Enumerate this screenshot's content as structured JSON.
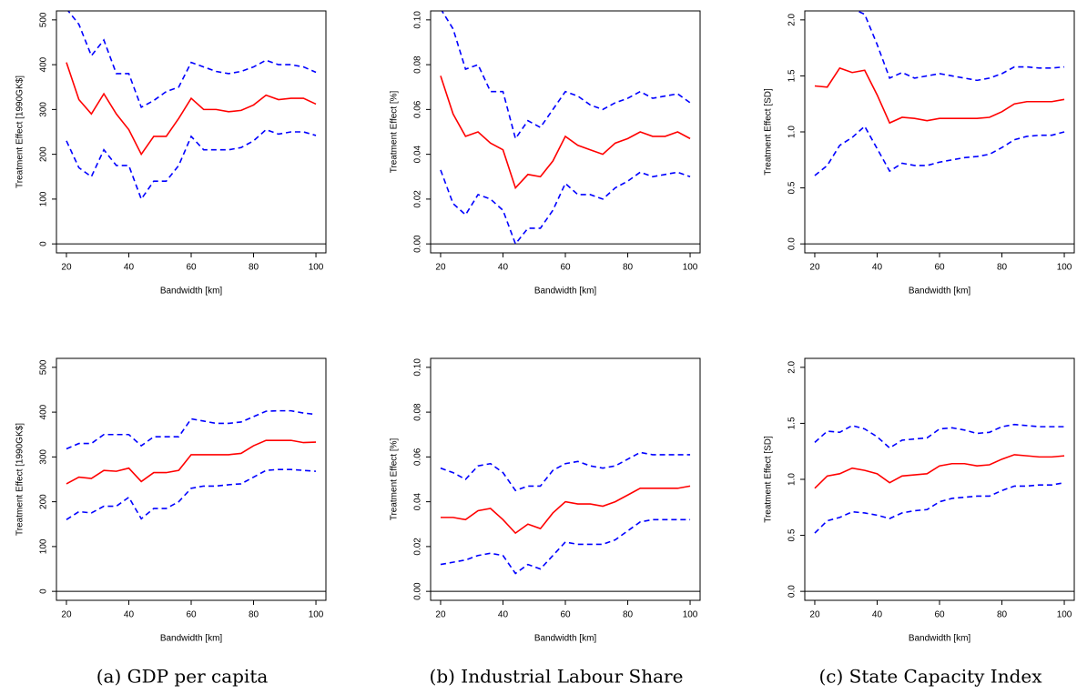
{
  "chart_data": [
    {
      "type": "line",
      "ylabel": "Treatment Effect [1990GK$]",
      "xlabel": "Bandwidth [km]",
      "x": [
        20,
        24,
        28,
        32,
        36,
        40,
        44,
        48,
        52,
        56,
        60,
        64,
        68,
        72,
        76,
        80,
        84,
        88,
        92,
        96,
        100
      ],
      "series": [
        {
          "color": "#ff0000",
          "linestyle": "solid",
          "values": [
            405,
            322,
            290,
            335,
            290,
            255,
            200,
            240,
            240,
            280,
            325,
            300,
            300,
            295,
            298,
            310,
            332,
            322,
            325,
            325,
            312
          ]
        },
        {
          "color": "#0000ff",
          "linestyle": "dashed",
          "values": [
            525,
            490,
            420,
            455,
            380,
            380,
            305,
            320,
            340,
            350,
            405,
            395,
            385,
            380,
            385,
            395,
            410,
            400,
            400,
            395,
            383
          ]
        },
        {
          "color": "#0000ff",
          "linestyle": "dashed",
          "values": [
            230,
            170,
            150,
            210,
            175,
            175,
            100,
            140,
            140,
            175,
            240,
            210,
            210,
            210,
            215,
            230,
            255,
            245,
            250,
            250,
            242
          ]
        }
      ],
      "hline": 0,
      "xlim": [
        16.8,
        103.2
      ],
      "xticks": [
        20,
        40,
        60,
        80,
        100
      ],
      "ylim": [
        -20,
        520
      ],
      "yticks": [
        0,
        100,
        200,
        300,
        400,
        500
      ]
    },
    {
      "type": "line",
      "ylabel": "Treatment Effect [%]",
      "xlabel": "Bandwidth [km]",
      "x": [
        20,
        24,
        28,
        32,
        36,
        40,
        44,
        48,
        52,
        56,
        60,
        64,
        68,
        72,
        76,
        80,
        84,
        88,
        92,
        96,
        100
      ],
      "series": [
        {
          "color": "#ff0000",
          "linestyle": "solid",
          "values": [
            0.075,
            0.058,
            0.048,
            0.05,
            0.045,
            0.042,
            0.025,
            0.031,
            0.03,
            0.037,
            0.048,
            0.044,
            0.042,
            0.04,
            0.045,
            0.047,
            0.05,
            0.048,
            0.048,
            0.05,
            0.047
          ]
        },
        {
          "color": "#0000ff",
          "linestyle": "dashed",
          "values": [
            0.105,
            0.096,
            0.078,
            0.08,
            0.068,
            0.068,
            0.047,
            0.055,
            0.052,
            0.06,
            0.068,
            0.066,
            0.062,
            0.06,
            0.063,
            0.065,
            0.068,
            0.065,
            0.066,
            0.067,
            0.063
          ]
        },
        {
          "color": "#0000ff",
          "linestyle": "dashed",
          "values": [
            0.033,
            0.018,
            0.013,
            0.022,
            0.02,
            0.015,
            0.0,
            0.007,
            0.007,
            0.015,
            0.027,
            0.022,
            0.022,
            0.02,
            0.025,
            0.028,
            0.032,
            0.03,
            0.031,
            0.032,
            0.03
          ]
        }
      ],
      "hline": 0,
      "xlim": [
        16.8,
        103.2
      ],
      "xticks": [
        20,
        40,
        60,
        80,
        100
      ],
      "ylim": [
        -0.004,
        0.104
      ],
      "yticks": [
        {
          "value": 0,
          "label": "0.00"
        },
        {
          "value": 0.02,
          "label": "0.02"
        },
        {
          "value": 0.04,
          "label": "0.04"
        },
        {
          "value": 0.06,
          "label": "0.06"
        },
        {
          "value": 0.08,
          "label": "0.08"
        },
        {
          "value": 0.1,
          "label": "0.10"
        }
      ]
    },
    {
      "type": "line",
      "ylabel": "Treatment Effect [SD]",
      "xlabel": "Bandwidth [km]",
      "x": [
        20,
        24,
        28,
        32,
        36,
        40,
        44,
        48,
        52,
        56,
        60,
        64,
        68,
        72,
        76,
        80,
        84,
        88,
        92,
        96,
        100
      ],
      "series": [
        {
          "color": "#ff0000",
          "linestyle": "solid",
          "values": [
            1.41,
            1.4,
            1.57,
            1.53,
            1.55,
            1.33,
            1.08,
            1.13,
            1.12,
            1.1,
            1.12,
            1.12,
            1.12,
            1.12,
            1.13,
            1.18,
            1.25,
            1.27,
            1.27,
            1.27,
            1.29
          ]
        },
        {
          "color": "#0000ff",
          "linestyle": "dashed",
          "values": [
            2.12,
            2.1,
            2.12,
            2.1,
            2.05,
            1.78,
            1.48,
            1.53,
            1.48,
            1.5,
            1.52,
            1.5,
            1.48,
            1.46,
            1.48,
            1.52,
            1.58,
            1.58,
            1.57,
            1.57,
            1.58
          ]
        },
        {
          "color": "#0000ff",
          "linestyle": "dashed",
          "values": [
            0.61,
            0.7,
            0.88,
            0.95,
            1.05,
            0.85,
            0.65,
            0.72,
            0.7,
            0.7,
            0.73,
            0.75,
            0.77,
            0.78,
            0.8,
            0.86,
            0.93,
            0.96,
            0.97,
            0.97,
            1.0
          ]
        }
      ],
      "hline": 0,
      "xlim": [
        16.8,
        103.2
      ],
      "xticks": [
        20,
        40,
        60,
        80,
        100
      ],
      "ylim": [
        -0.08,
        2.08
      ],
      "yticks": [
        {
          "value": 0,
          "label": "0.0"
        },
        {
          "value": 0.5,
          "label": "0.5"
        },
        {
          "value": 1,
          "label": "1.0"
        },
        {
          "value": 1.5,
          "label": "1.5"
        },
        {
          "value": 2,
          "label": "2.0"
        }
      ]
    },
    {
      "type": "line",
      "ylabel": "Treatment Effect [1990GK$]",
      "xlabel": "Bandwidth [km]",
      "x": [
        20,
        24,
        28,
        32,
        36,
        40,
        44,
        48,
        52,
        56,
        60,
        64,
        68,
        72,
        76,
        80,
        84,
        88,
        92,
        96,
        100
      ],
      "series": [
        {
          "color": "#ff0000",
          "linestyle": "solid",
          "values": [
            240,
            255,
            252,
            270,
            268,
            275,
            245,
            265,
            265,
            270,
            305,
            305,
            305,
            305,
            308,
            325,
            337,
            337,
            337,
            332,
            333
          ]
        },
        {
          "color": "#0000ff",
          "linestyle": "dashed",
          "values": [
            318,
            330,
            330,
            350,
            350,
            350,
            325,
            345,
            345,
            345,
            385,
            380,
            375,
            375,
            378,
            390,
            402,
            403,
            403,
            398,
            395
          ]
        },
        {
          "color": "#0000ff",
          "linestyle": "dashed",
          "values": [
            160,
            178,
            175,
            190,
            190,
            210,
            162,
            185,
            185,
            200,
            230,
            235,
            235,
            238,
            240,
            255,
            270,
            272,
            272,
            270,
            268
          ]
        }
      ],
      "hline": 0,
      "xlim": [
        16.8,
        103.2
      ],
      "xticks": [
        20,
        40,
        60,
        80,
        100
      ],
      "ylim": [
        -20,
        520
      ],
      "yticks": [
        0,
        100,
        200,
        300,
        400,
        500
      ]
    },
    {
      "type": "line",
      "ylabel": "Treatment Effect [%]",
      "xlabel": "Bandwidth [km]",
      "x": [
        20,
        24,
        28,
        32,
        36,
        40,
        44,
        48,
        52,
        56,
        60,
        64,
        68,
        72,
        76,
        80,
        84,
        88,
        92,
        96,
        100
      ],
      "series": [
        {
          "color": "#ff0000",
          "linestyle": "solid",
          "values": [
            0.033,
            0.033,
            0.032,
            0.036,
            0.037,
            0.032,
            0.026,
            0.03,
            0.028,
            0.035,
            0.04,
            0.039,
            0.039,
            0.038,
            0.04,
            0.043,
            0.046,
            0.046,
            0.046,
            0.046,
            0.047
          ]
        },
        {
          "color": "#0000ff",
          "linestyle": "dashed",
          "values": [
            0.055,
            0.053,
            0.05,
            0.056,
            0.057,
            0.053,
            0.045,
            0.047,
            0.047,
            0.054,
            0.057,
            0.058,
            0.056,
            0.055,
            0.056,
            0.059,
            0.062,
            0.061,
            0.061,
            0.061,
            0.061
          ]
        },
        {
          "color": "#0000ff",
          "linestyle": "dashed",
          "values": [
            0.012,
            0.013,
            0.014,
            0.016,
            0.017,
            0.016,
            0.008,
            0.012,
            0.01,
            0.016,
            0.022,
            0.021,
            0.021,
            0.021,
            0.023,
            0.027,
            0.031,
            0.032,
            0.032,
            0.032,
            0.032
          ]
        }
      ],
      "hline": 0,
      "xlim": [
        16.8,
        103.2
      ],
      "xticks": [
        20,
        40,
        60,
        80,
        100
      ],
      "ylim": [
        -0.004,
        0.104
      ],
      "yticks": [
        {
          "value": 0,
          "label": "0.00"
        },
        {
          "value": 0.02,
          "label": "0.02"
        },
        {
          "value": 0.04,
          "label": "0.04"
        },
        {
          "value": 0.06,
          "label": "0.06"
        },
        {
          "value": 0.08,
          "label": "0.08"
        },
        {
          "value": 0.1,
          "label": "0.10"
        }
      ]
    },
    {
      "type": "line",
      "ylabel": "Treatment Effect [SD]",
      "xlabel": "Bandwidth [km]",
      "x": [
        20,
        24,
        28,
        32,
        36,
        40,
        44,
        48,
        52,
        56,
        60,
        64,
        68,
        72,
        76,
        80,
        84,
        88,
        92,
        96,
        100
      ],
      "series": [
        {
          "color": "#ff0000",
          "linestyle": "solid",
          "values": [
            0.92,
            1.03,
            1.05,
            1.1,
            1.08,
            1.05,
            0.97,
            1.03,
            1.04,
            1.05,
            1.12,
            1.14,
            1.14,
            1.12,
            1.13,
            1.18,
            1.22,
            1.21,
            1.2,
            1.2,
            1.21
          ]
        },
        {
          "color": "#0000ff",
          "linestyle": "dashed",
          "values": [
            1.33,
            1.43,
            1.42,
            1.48,
            1.45,
            1.38,
            1.28,
            1.35,
            1.36,
            1.37,
            1.45,
            1.46,
            1.44,
            1.41,
            1.42,
            1.47,
            1.49,
            1.48,
            1.47,
            1.47,
            1.47
          ]
        },
        {
          "color": "#0000ff",
          "linestyle": "dashed",
          "values": [
            0.52,
            0.63,
            0.66,
            0.71,
            0.7,
            0.68,
            0.65,
            0.7,
            0.72,
            0.73,
            0.8,
            0.83,
            0.84,
            0.85,
            0.85,
            0.9,
            0.94,
            0.94,
            0.95,
            0.95,
            0.97
          ]
        }
      ],
      "hline": 0,
      "xlim": [
        16.8,
        103.2
      ],
      "xticks": [
        20,
        40,
        60,
        80,
        100
      ],
      "ylim": [
        -0.08,
        2.08
      ],
      "yticks": [
        {
          "value": 0,
          "label": "0.0"
        },
        {
          "value": 0.5,
          "label": "0.5"
        },
        {
          "value": 1,
          "label": "1.0"
        },
        {
          "value": 1.5,
          "label": "1.5"
        },
        {
          "value": 2,
          "label": "2.0"
        }
      ]
    }
  ],
  "captions": [
    "(a) GDP per capita",
    "(b) Industrial Labour Share",
    "(c) State Capacity Index"
  ]
}
